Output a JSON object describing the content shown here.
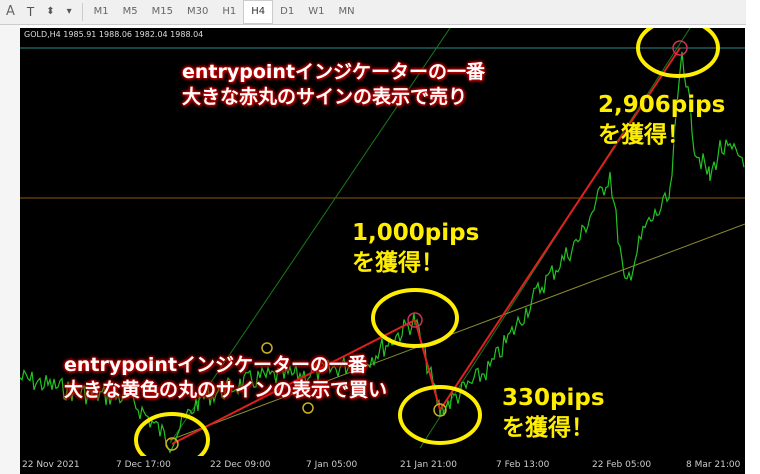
{
  "toolbar": {
    "tools": [
      "A",
      "T",
      "⬍"
    ],
    "timeframes": [
      "M1",
      "M5",
      "M15",
      "M30",
      "H1",
      "H4",
      "D1",
      "W1",
      "MN"
    ],
    "active": "H4"
  },
  "chart": {
    "symbol_header": "GOLD,H4  1985.91 1988.06 1982.04 1988.04",
    "time_labels": [
      "22 Nov 2021",
      "7 Dec 17:00",
      "22 Dec 09:00",
      "7 Jan 05:00",
      "21 Jan 21:00",
      "7 Feb 13:00",
      "22 Feb 05:00",
      "8 Mar 21:00"
    ],
    "colors": {
      "background": "#000000",
      "candles": "#22c322",
      "signal_line": "#e02020",
      "highlight": "#ffee00"
    }
  },
  "annotations": {
    "sell_note": [
      "entrypointインジケーターの一番",
      "大きな赤丸のサインの表示で売り"
    ],
    "buy_note": [
      "entrypointインジケーターの一番",
      "大きな黄色の丸のサインの表示で買い"
    ],
    "gain1": [
      "1,000pips",
      "を獲得！"
    ],
    "gain2": [
      "330pips",
      "を獲得！"
    ],
    "gain3": [
      "2,906pips",
      "を獲得！"
    ]
  }
}
